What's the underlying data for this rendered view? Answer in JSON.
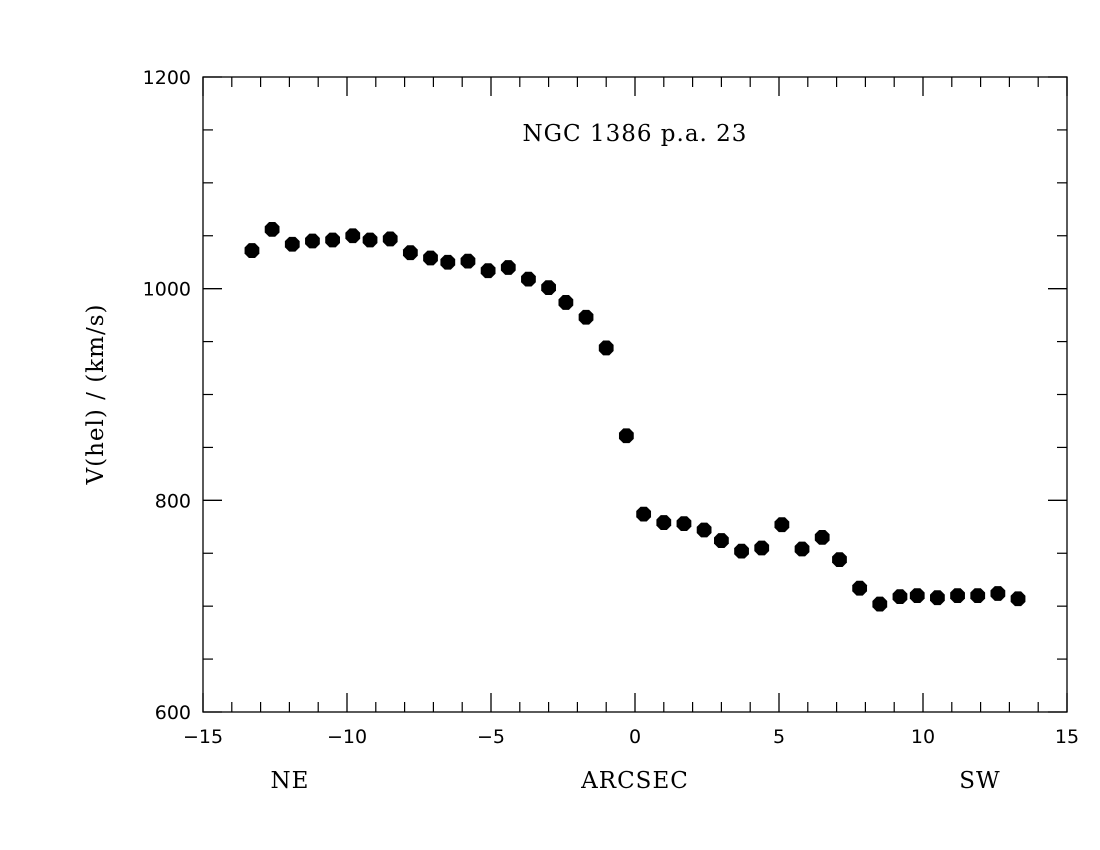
{
  "chart_data": {
    "type": "scatter",
    "title": "NGC 1386 p.a. 23",
    "xlabel": "ARCSEC",
    "ylabel": "V(hel) / (km/s)",
    "xlim": [
      -15,
      15
    ],
    "ylim": [
      600,
      1200
    ],
    "x_ticks": [
      -15,
      -10,
      -5,
      0,
      5,
      10,
      15
    ],
    "y_ticks": [
      600,
      800,
      1000,
      1200
    ],
    "x_tick_labels": [
      "−15",
      "−10",
      "−5",
      "0",
      "5",
      "10",
      "15"
    ],
    "y_tick_labels": [
      "600",
      "800",
      "1000",
      "1200"
    ],
    "x_minor_step": 1,
    "y_minor_step": 50,
    "annotations": {
      "left": "NE",
      "right": "SW"
    },
    "grid": false,
    "marker_color": "#000000",
    "series": [
      {
        "x": [
          -13.3,
          -12.6,
          -11.9,
          -11.2,
          -10.5,
          -9.8,
          -9.2,
          -8.5,
          -7.8,
          -7.1,
          -6.5,
          -5.8,
          -5.1,
          -4.4,
          -3.7,
          -3.0,
          -2.4,
          -1.7,
          -1.0,
          -0.3,
          0.3,
          1.0,
          1.7,
          2.4,
          3.0,
          3.7,
          4.4,
          5.1,
          5.8,
          6.5,
          7.1,
          7.8,
          8.5,
          9.2,
          9.8,
          10.5,
          11.2,
          11.9,
          12.6,
          13.3
        ],
        "y": [
          1036,
          1056,
          1042,
          1045,
          1046,
          1050,
          1046,
          1047,
          1034,
          1029,
          1025,
          1026,
          1017,
          1020,
          1009,
          1001,
          987,
          973,
          944,
          861,
          787,
          779,
          778,
          772,
          762,
          752,
          755,
          777,
          754,
          765,
          744,
          717,
          702,
          709,
          710,
          708,
          710,
          710,
          712,
          707
        ]
      }
    ]
  }
}
